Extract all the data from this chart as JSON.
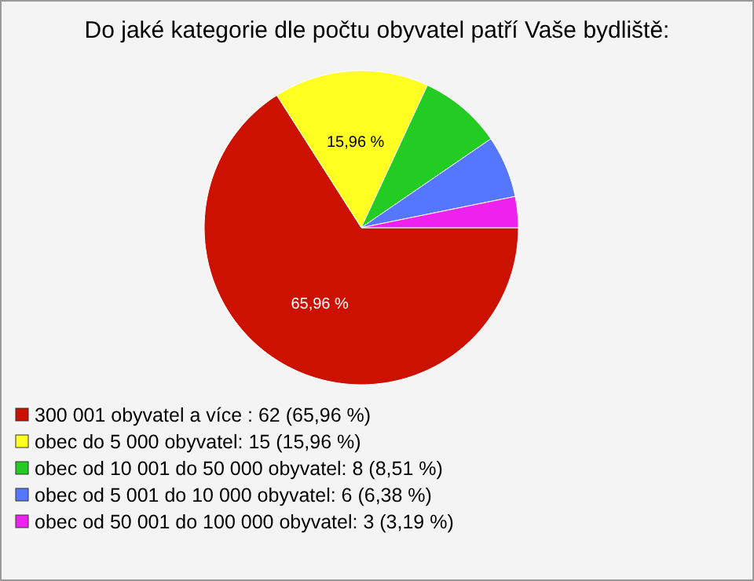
{
  "chart_data": {
    "type": "pie",
    "title": "Do jaké kategorie dle počtu obyvatel patří Vaše bydliště:",
    "categories": [
      "300 001 obyvatel a více : 62 (65,96 %)",
      "obec do 5 000 obyvatel: 15 (15,96 %)",
      "obec od 10 001 do 50 000 obyvatel: 8 (8,51 %)",
      "obec od 5 001 do 10 000 obyvatel: 6 (6,38 %)",
      "obec od 50 001 do 100 000 obyvatel: 3 (3,19 %)"
    ],
    "values": [
      65.96,
      15.96,
      8.51,
      6.38,
      3.19
    ],
    "colors": [
      "#cc1100",
      "#ffff22",
      "#22cc22",
      "#5577ff",
      "#ee22ee"
    ],
    "value_labels": [
      "65,96 %",
      "15,96 %",
      null,
      null,
      null
    ],
    "legend": "bottom left"
  }
}
